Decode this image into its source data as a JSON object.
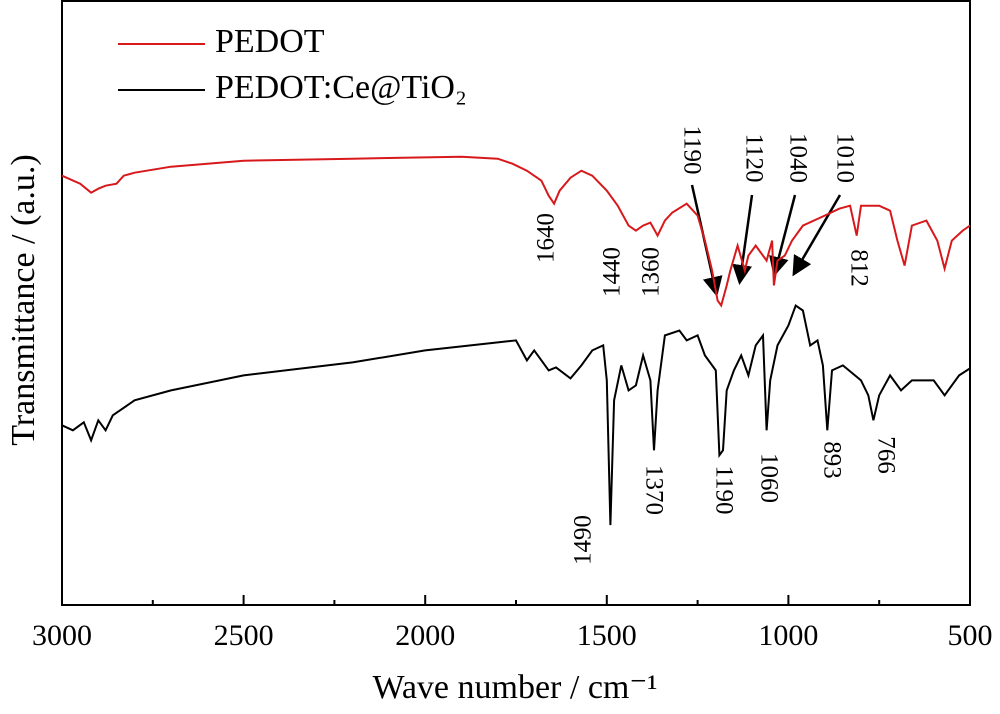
{
  "chart_data": {
    "type": "line",
    "xlabel": "Wave number / cm⁻¹",
    "ylabel": "Transmittance / (a.u.)",
    "xlim": [
      3000,
      500
    ],
    "xticks": [
      3000,
      2500,
      2000,
      1500,
      1000,
      500
    ],
    "xminor_ticks": [
      2750,
      2250,
      1750,
      1250,
      750
    ],
    "ylim": [
      0,
      121
    ],
    "legend": "upper left",
    "series": [
      {
        "name": "PEDOT",
        "color": "#d7191c",
        "x": [
          3000,
          2950,
          2920,
          2900,
          2880,
          2850,
          2830,
          2800,
          2700,
          2500,
          2200,
          1900,
          1800,
          1760,
          1720,
          1680,
          1660,
          1645,
          1630,
          1600,
          1570,
          1540,
          1500,
          1470,
          1440,
          1420,
          1400,
          1380,
          1360,
          1340,
          1320,
          1280,
          1250,
          1230,
          1210,
          1195,
          1185,
          1170,
          1160,
          1140,
          1120,
          1110,
          1090,
          1060,
          1045,
          1040,
          1030,
          1010,
          990,
          960,
          900,
          860,
          830,
          812,
          800,
          750,
          720,
          700,
          680,
          660,
          620,
          590,
          570,
          550,
          520,
          500
        ],
        "values": [
          86,
          84.4,
          82.6,
          83.4,
          84,
          84.4,
          86,
          86.6,
          87.8,
          89,
          89.4,
          89.8,
          89.4,
          88.4,
          87,
          85,
          82,
          80.4,
          83,
          85.6,
          87,
          86,
          83,
          80,
          76,
          75,
          76,
          76.6,
          74,
          77,
          78.6,
          80.4,
          78,
          73,
          67,
          61,
          60,
          64,
          67,
          72,
          67,
          70,
          72,
          69,
          73,
          64,
          69,
          70,
          73,
          76,
          78,
          79.4,
          80,
          74,
          80,
          80,
          79,
          73,
          68,
          76,
          77,
          73,
          67.4,
          73,
          75,
          76
        ],
        "peak_labels": [
          1640,
          1440,
          1360,
          1190,
          1120,
          1040,
          1010,
          812
        ]
      },
      {
        "name": "PEDOT:Ce@TiO₂",
        "color": "#000000",
        "x": [
          3000,
          2970,
          2940,
          2920,
          2900,
          2880,
          2860,
          2840,
          2800,
          2700,
          2500,
          2200,
          2000,
          1800,
          1750,
          1720,
          1700,
          1660,
          1640,
          1600,
          1570,
          1540,
          1510,
          1500,
          1490,
          1480,
          1460,
          1440,
          1420,
          1400,
          1380,
          1370,
          1360,
          1340,
          1300,
          1280,
          1250,
          1230,
          1200,
          1190,
          1180,
          1170,
          1150,
          1130,
          1110,
          1090,
          1070,
          1060,
          1050,
          1030,
          1000,
          980,
          960,
          940,
          920,
          905,
          893,
          880,
          850,
          800,
          780,
          766,
          750,
          720,
          690,
          660,
          600,
          570,
          530,
          500
        ],
        "values": [
          36,
          35,
          36.6,
          33,
          37,
          35,
          38,
          39,
          41,
          43,
          46,
          48.6,
          51,
          52.6,
          53,
          49,
          51,
          47,
          47.6,
          45.4,
          48,
          51,
          52,
          45,
          16,
          41,
          48,
          43,
          44,
          50,
          45,
          31,
          43,
          54,
          55,
          53,
          54,
          50,
          47,
          30,
          31,
          43,
          47,
          50,
          46,
          52,
          54,
          35,
          45,
          52,
          56,
          60,
          59,
          52,
          53,
          48,
          35,
          47,
          48,
          45,
          42,
          37,
          42,
          46,
          43,
          45,
          45,
          42,
          46,
          47.4
        ],
        "peak_labels": [
          1490,
          1370,
          1190,
          1060,
          893,
          766
        ]
      }
    ]
  }
}
